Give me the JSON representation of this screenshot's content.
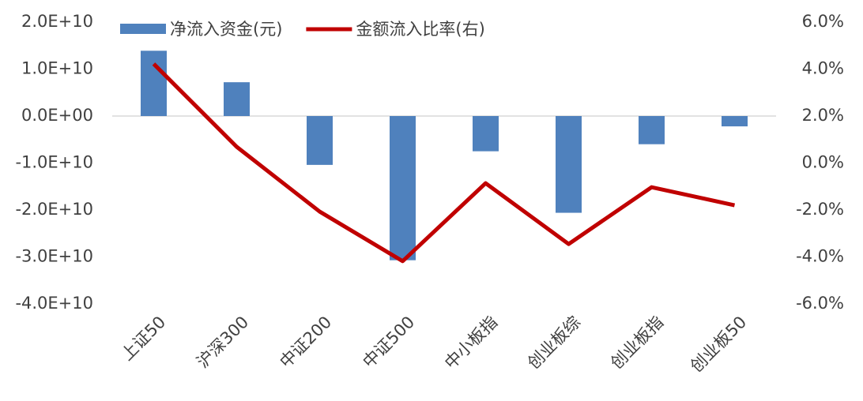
{
  "chart_data": {
    "type": "bar-line",
    "categories": [
      "上证50",
      "沪深300",
      "中证200",
      "中证500",
      "中小板指",
      "创业板综",
      "创业板指",
      "创业板50"
    ],
    "series": [
      {
        "name": "净流入资金(元)",
        "type": "bar",
        "color": "#4f81bd",
        "values": [
          13900000000,
          7200000000,
          -10400000000,
          -30700000000,
          -7500000000,
          -20600000000,
          -6000000000,
          -2200000000
        ]
      },
      {
        "name": "金额流入比率(右)",
        "type": "line",
        "axis": "y2",
        "color": "#c00000",
        "values": [
          4.22,
          0.69,
          -2.07,
          -4.18,
          -0.86,
          -3.45,
          -1.03,
          -1.8
        ]
      }
    ],
    "ylim": [
      -40000000000,
      20000000000
    ],
    "yticks": [
      {
        "value": 20000000000,
        "label": "2.0E+10"
      },
      {
        "value": 10000000000,
        "label": "1.0E+10"
      },
      {
        "value": 0,
        "label": "0.0E+00"
      },
      {
        "value": -10000000000,
        "label": "-1.0E+10"
      },
      {
        "value": -20000000000,
        "label": "-2.0E+10"
      },
      {
        "value": -30000000000,
        "label": "-3.0E+10"
      },
      {
        "value": -40000000000,
        "label": "-4.0E+10"
      }
    ],
    "y2lim": [
      -6,
      6
    ],
    "y2ticks": [
      {
        "value": 6,
        "label": "6.0%"
      },
      {
        "value": 4,
        "label": "4.0%"
      },
      {
        "value": 2,
        "label": "2.0%"
      },
      {
        "value": 0,
        "label": "0.0%"
      },
      {
        "value": -2,
        "label": "-2.0%"
      },
      {
        "value": -4,
        "label": "-4.0%"
      },
      {
        "value": -6,
        "label": "-6.0%"
      }
    ],
    "grid": false,
    "legend": "top"
  }
}
